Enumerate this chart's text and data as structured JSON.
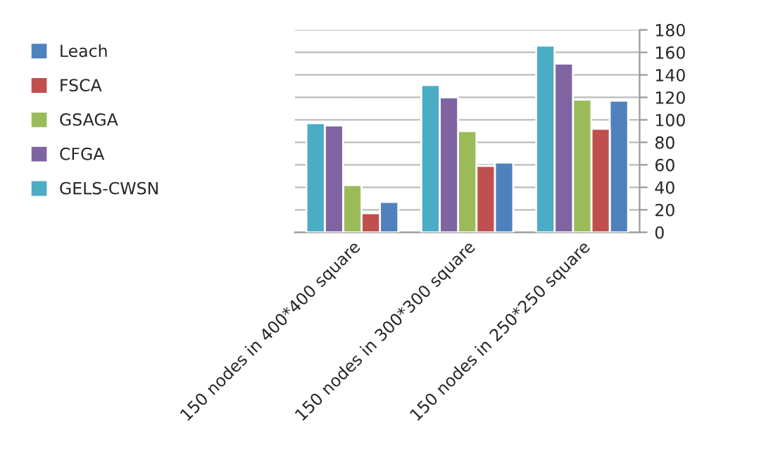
{
  "chart_data": {
    "type": "bar",
    "categories": [
      "150 nodes in 400*400 square",
      "150 nodes in 300*300 square",
      "150 nodes in 250*250 square"
    ],
    "series": [
      {
        "name": "Leach",
        "color": "#4f81bd",
        "values": [
          27,
          62,
          117
        ]
      },
      {
        "name": "FSCA",
        "color": "#c0504d",
        "values": [
          17,
          59,
          92
        ]
      },
      {
        "name": "GSAGA",
        "color": "#9bbb59",
        "values": [
          42,
          90,
          118
        ]
      },
      {
        "name": "CFGA",
        "color": "#8064a2",
        "values": [
          95,
          120,
          150
        ]
      },
      {
        "name": "GELS-CWSN",
        "color": "#4bacc6",
        "values": [
          97,
          131,
          166
        ]
      }
    ],
    "ylim": [
      0,
      180
    ],
    "yticks": [
      0,
      20,
      40,
      60,
      80,
      100,
      120,
      140,
      160,
      180
    ],
    "grid": "y",
    "legend": "left"
  }
}
